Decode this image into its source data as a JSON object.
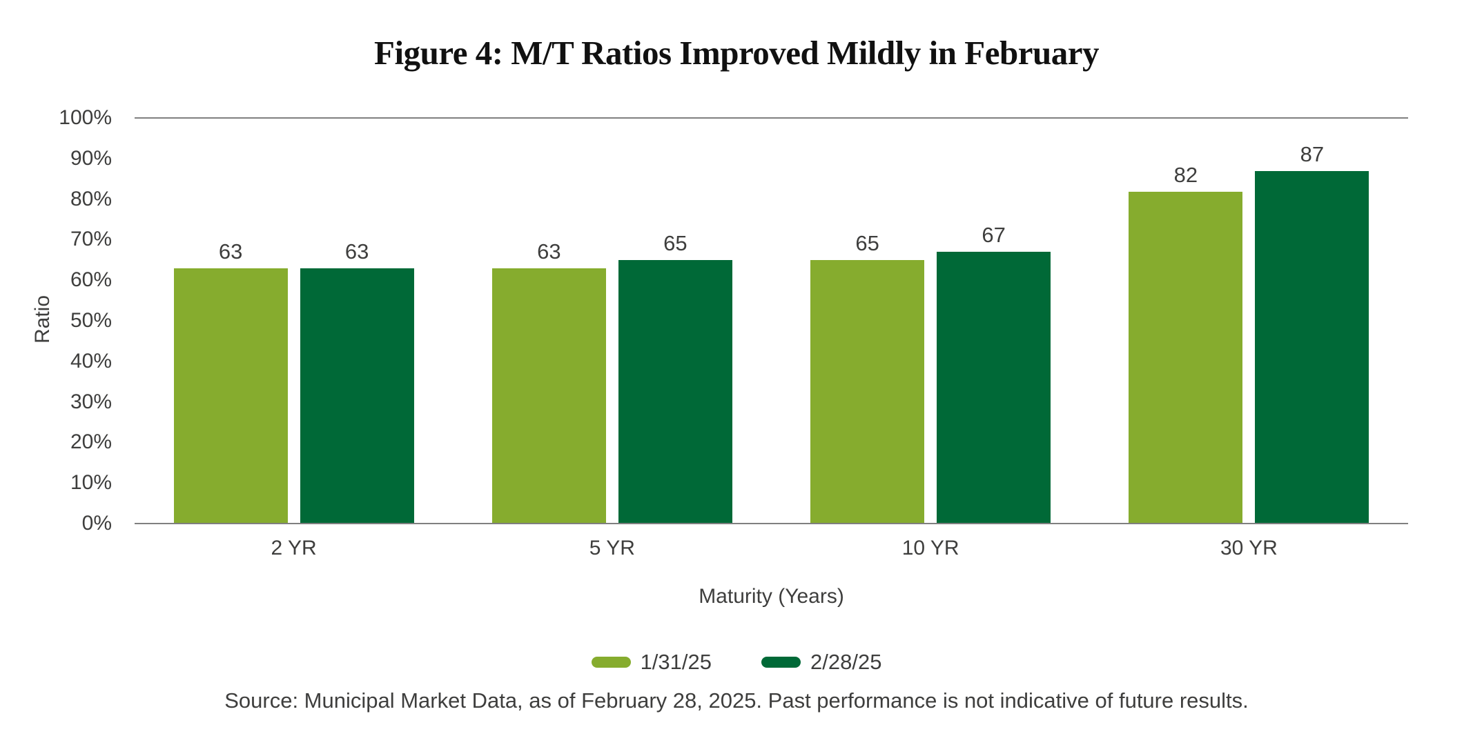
{
  "chart_data": {
    "type": "bar",
    "title": "Figure 4: M/T Ratios Improved Mildly in February",
    "categories": [
      "2 YR",
      "5 YR",
      "10 YR",
      "30 YR"
    ],
    "series": [
      {
        "name": "1/31/25",
        "color": "#86AC2E",
        "values": [
          63,
          63,
          65,
          82
        ]
      },
      {
        "name": "2/28/25",
        "color": "#006937",
        "values": [
          63,
          65,
          67,
          87
        ]
      }
    ],
    "xlabel": "Maturity (Years)",
    "ylabel": "Ratio",
    "ylim": [
      0,
      100
    ],
    "ytick_step": 10,
    "ytick_labels": [
      "0%",
      "10%",
      "20%",
      "30%",
      "40%",
      "50%",
      "60%",
      "70%",
      "80%",
      "90%",
      "100%"
    ],
    "grid": "top-gridline-and-baseline-only",
    "legend_position": "bottom-center",
    "bar_labels_shown": true,
    "colors": {
      "axis_line": "#7F7F7F",
      "text": "#3E3E3D",
      "title_text": "#111111"
    }
  },
  "source_note": "Source: Municipal Market Data, as of February 28, 2025. Past performance is not indicative of future results."
}
